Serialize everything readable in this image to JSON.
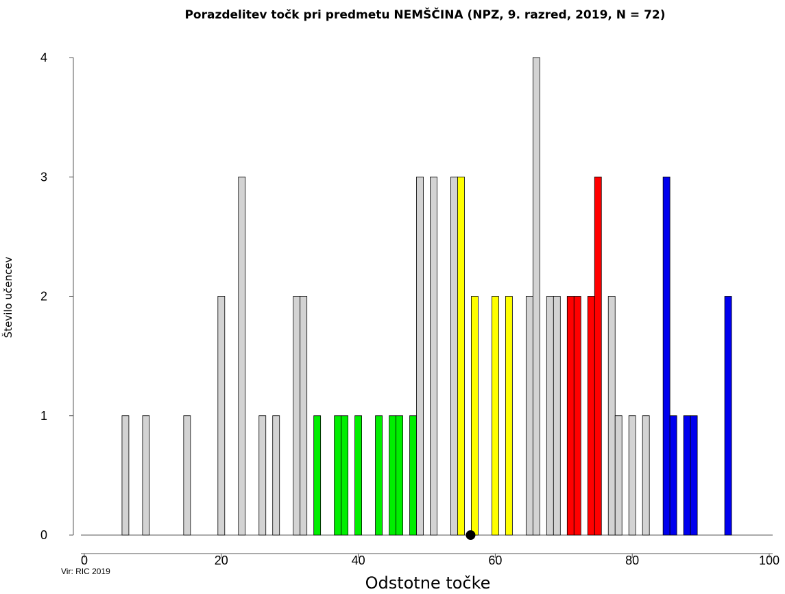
{
  "chart_data": {
    "type": "bar",
    "title": "Porazdelitev točk pri predmetu NEMŠČINA (NPZ, 9. razred, 2019, N = 72)",
    "xlabel": "Odstotne točke",
    "ylabel": "Število učencev",
    "source": "Vir: RIC 2019",
    "xlim": [
      0,
      100
    ],
    "ylim": [
      0,
      4
    ],
    "x_ticks": [
      "0",
      "20",
      "40",
      "60",
      "80",
      "100"
    ],
    "y_ticks": [
      "0",
      "1",
      "2",
      "3",
      "4"
    ],
    "grid": false,
    "bar_width": 1,
    "colors": {
      "grey": "#d3d3d3",
      "green": "#00ee00",
      "yellow": "#ffff00",
      "red": "#ff0000",
      "blue": "#0000ee"
    },
    "bars": [
      {
        "x": 6,
        "value": 1,
        "color": "grey"
      },
      {
        "x": 9,
        "value": 1,
        "color": "grey"
      },
      {
        "x": 15,
        "value": 1,
        "color": "grey"
      },
      {
        "x": 20,
        "value": 2,
        "color": "grey"
      },
      {
        "x": 23,
        "value": 3,
        "color": "grey"
      },
      {
        "x": 26,
        "value": 1,
        "color": "grey"
      },
      {
        "x": 28,
        "value": 1,
        "color": "grey"
      },
      {
        "x": 31,
        "value": 2,
        "color": "grey"
      },
      {
        "x": 32,
        "value": 2,
        "color": "grey"
      },
      {
        "x": 34,
        "value": 1,
        "color": "green"
      },
      {
        "x": 37,
        "value": 1,
        "color": "green"
      },
      {
        "x": 38,
        "value": 1,
        "color": "green"
      },
      {
        "x": 40,
        "value": 1,
        "color": "green"
      },
      {
        "x": 43,
        "value": 1,
        "color": "green"
      },
      {
        "x": 45,
        "value": 1,
        "color": "green"
      },
      {
        "x": 46,
        "value": 1,
        "color": "green"
      },
      {
        "x": 48,
        "value": 1,
        "color": "green"
      },
      {
        "x": 49,
        "value": 3,
        "color": "grey"
      },
      {
        "x": 51,
        "value": 3,
        "color": "grey"
      },
      {
        "x": 54,
        "value": 3,
        "color": "grey"
      },
      {
        "x": 55,
        "value": 3,
        "color": "yellow"
      },
      {
        "x": 57,
        "value": 2,
        "color": "yellow"
      },
      {
        "x": 60,
        "value": 2,
        "color": "yellow"
      },
      {
        "x": 62,
        "value": 2,
        "color": "yellow"
      },
      {
        "x": 65,
        "value": 2,
        "color": "grey"
      },
      {
        "x": 66,
        "value": 4,
        "color": "grey"
      },
      {
        "x": 68,
        "value": 2,
        "color": "grey"
      },
      {
        "x": 69,
        "value": 2,
        "color": "grey"
      },
      {
        "x": 71,
        "value": 2,
        "color": "red"
      },
      {
        "x": 72,
        "value": 2,
        "color": "red"
      },
      {
        "x": 74,
        "value": 2,
        "color": "red"
      },
      {
        "x": 75,
        "value": 3,
        "color": "red"
      },
      {
        "x": 77,
        "value": 2,
        "color": "grey"
      },
      {
        "x": 78,
        "value": 1,
        "color": "grey"
      },
      {
        "x": 80,
        "value": 1,
        "color": "grey"
      },
      {
        "x": 82,
        "value": 1,
        "color": "grey"
      },
      {
        "x": 85,
        "value": 3,
        "color": "blue"
      },
      {
        "x": 86,
        "value": 1,
        "color": "blue"
      },
      {
        "x": 88,
        "value": 1,
        "color": "blue"
      },
      {
        "x": 89,
        "value": 1,
        "color": "blue"
      },
      {
        "x": 94,
        "value": 2,
        "color": "blue"
      }
    ],
    "mean_marker": {
      "x": 56.4,
      "value": 0
    }
  }
}
